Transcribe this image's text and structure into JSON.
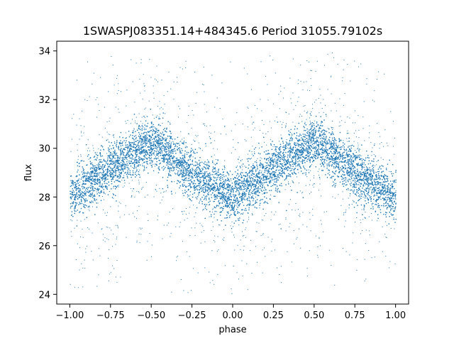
{
  "chart_data": {
    "type": "scatter",
    "title": "1SWASPJ083351.14+484345.6 Period 31055.79102s",
    "xlabel": "phase",
    "ylabel": "flux",
    "xlim": [
      -1.08,
      1.08
    ],
    "ylim": [
      23.6,
      34.4
    ],
    "xticks": [
      -1.0,
      -0.75,
      -0.5,
      -0.25,
      0.0,
      0.25,
      0.5,
      0.75,
      1.0
    ],
    "xtick_labels": [
      "−1.00",
      "−0.75",
      "−0.50",
      "−0.25",
      "0.00",
      "0.25",
      "0.50",
      "0.75",
      "1.00"
    ],
    "yticks": [
      24,
      26,
      28,
      30,
      32,
      34
    ],
    "ytick_labels": [
      "24",
      "26",
      "28",
      "30",
      "32",
      "34"
    ],
    "grid": false,
    "marker_color": "#1f77b4",
    "series": [
      {
        "phase_range": [
          -1.0,
          1.0
        ],
        "flux_range": [
          24.0,
          34.0
        ],
        "trend": {
          "phase": [
            -1.0,
            -0.75,
            -0.5,
            -0.25,
            0.0,
            0.25,
            0.5,
            0.75,
            1.0
          ],
          "flux": [
            28.0,
            29.2,
            30.3,
            29.0,
            28.0,
            29.2,
            30.3,
            29.0,
            28.0
          ]
        },
        "band_halfwidth": 0.9
      }
    ]
  }
}
